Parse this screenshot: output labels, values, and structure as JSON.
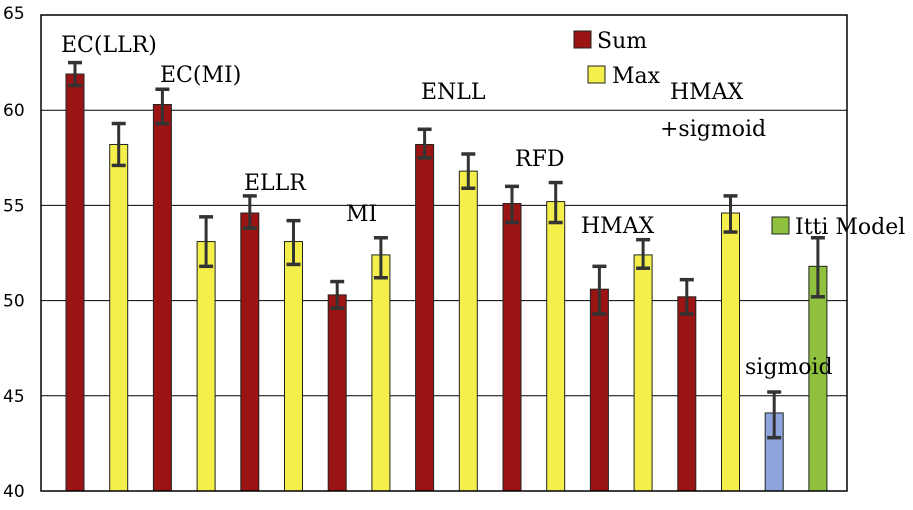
{
  "chart_data": {
    "type": "bar",
    "title": "",
    "xlabel": "",
    "ylabel": "",
    "ylim": [
      40,
      65
    ],
    "yticks": [
      40,
      45,
      50,
      55,
      60,
      65
    ],
    "grid": true,
    "colors": {
      "sum": "#9b1414",
      "max": "#f4ef4a",
      "sigmoid": "#8fa6dc",
      "itti": "#8fc13f",
      "error": "#333333"
    },
    "bars": [
      {
        "value": 61.9,
        "err_low": 61.3,
        "err_high": 62.5,
        "color": "sum"
      },
      {
        "value": 58.2,
        "err_low": 57.1,
        "err_high": 59.3,
        "color": "max"
      },
      {
        "value": 60.3,
        "err_low": 59.3,
        "err_high": 61.1,
        "color": "sum"
      },
      {
        "value": 53.1,
        "err_low": 51.8,
        "err_high": 54.4,
        "color": "max"
      },
      {
        "value": 54.6,
        "err_low": 53.8,
        "err_high": 55.5,
        "color": "sum"
      },
      {
        "value": 53.1,
        "err_low": 51.9,
        "err_high": 54.2,
        "color": "max"
      },
      {
        "value": 50.3,
        "err_low": 49.6,
        "err_high": 51.0,
        "color": "sum"
      },
      {
        "value": 52.4,
        "err_low": 51.2,
        "err_high": 53.3,
        "color": "max"
      },
      {
        "value": 58.2,
        "err_low": 57.5,
        "err_high": 59.0,
        "color": "sum"
      },
      {
        "value": 56.8,
        "err_low": 55.9,
        "err_high": 57.7,
        "color": "max"
      },
      {
        "value": 55.1,
        "err_low": 54.1,
        "err_high": 56.0,
        "color": "sum"
      },
      {
        "value": 55.2,
        "err_low": 54.1,
        "err_high": 56.2,
        "color": "max"
      },
      {
        "value": 50.6,
        "err_low": 49.3,
        "err_high": 51.8,
        "color": "sum"
      },
      {
        "value": 52.4,
        "err_low": 51.7,
        "err_high": 53.2,
        "color": "max"
      },
      {
        "value": 50.2,
        "err_low": 49.3,
        "err_high": 51.1,
        "color": "sum"
      },
      {
        "value": 54.6,
        "err_low": 53.6,
        "err_high": 55.5,
        "color": "max"
      },
      {
        "value": 44.1,
        "err_low": 42.8,
        "err_high": 45.2,
        "color": "sigmoid"
      },
      {
        "value": 51.8,
        "err_low": 50.2,
        "err_high": 53.3,
        "color": "itti"
      }
    ],
    "annotations": [
      {
        "text": "EC(LLR)",
        "bar": 0
      },
      {
        "text": "EC(MI)",
        "bar": 2
      },
      {
        "text": "ELLR",
        "bar": 4
      },
      {
        "text": "MI",
        "bar": 6
      },
      {
        "text": "ENLL",
        "bar": 8
      },
      {
        "text": "RFD",
        "bar": 10
      },
      {
        "text": "HMAX",
        "bar": 12
      },
      {
        "text": "HMAX",
        "bar": 14
      },
      {
        "text": "+sigmoid",
        "bar": 14
      },
      {
        "text": "sigmoid",
        "bar": 16
      }
    ],
    "legend": [
      {
        "name": "Sum",
        "color": "sum"
      },
      {
        "name": "Max",
        "color": "max"
      },
      {
        "name": "Itti Model",
        "color": "itti"
      }
    ],
    "legend_position": "inside"
  }
}
